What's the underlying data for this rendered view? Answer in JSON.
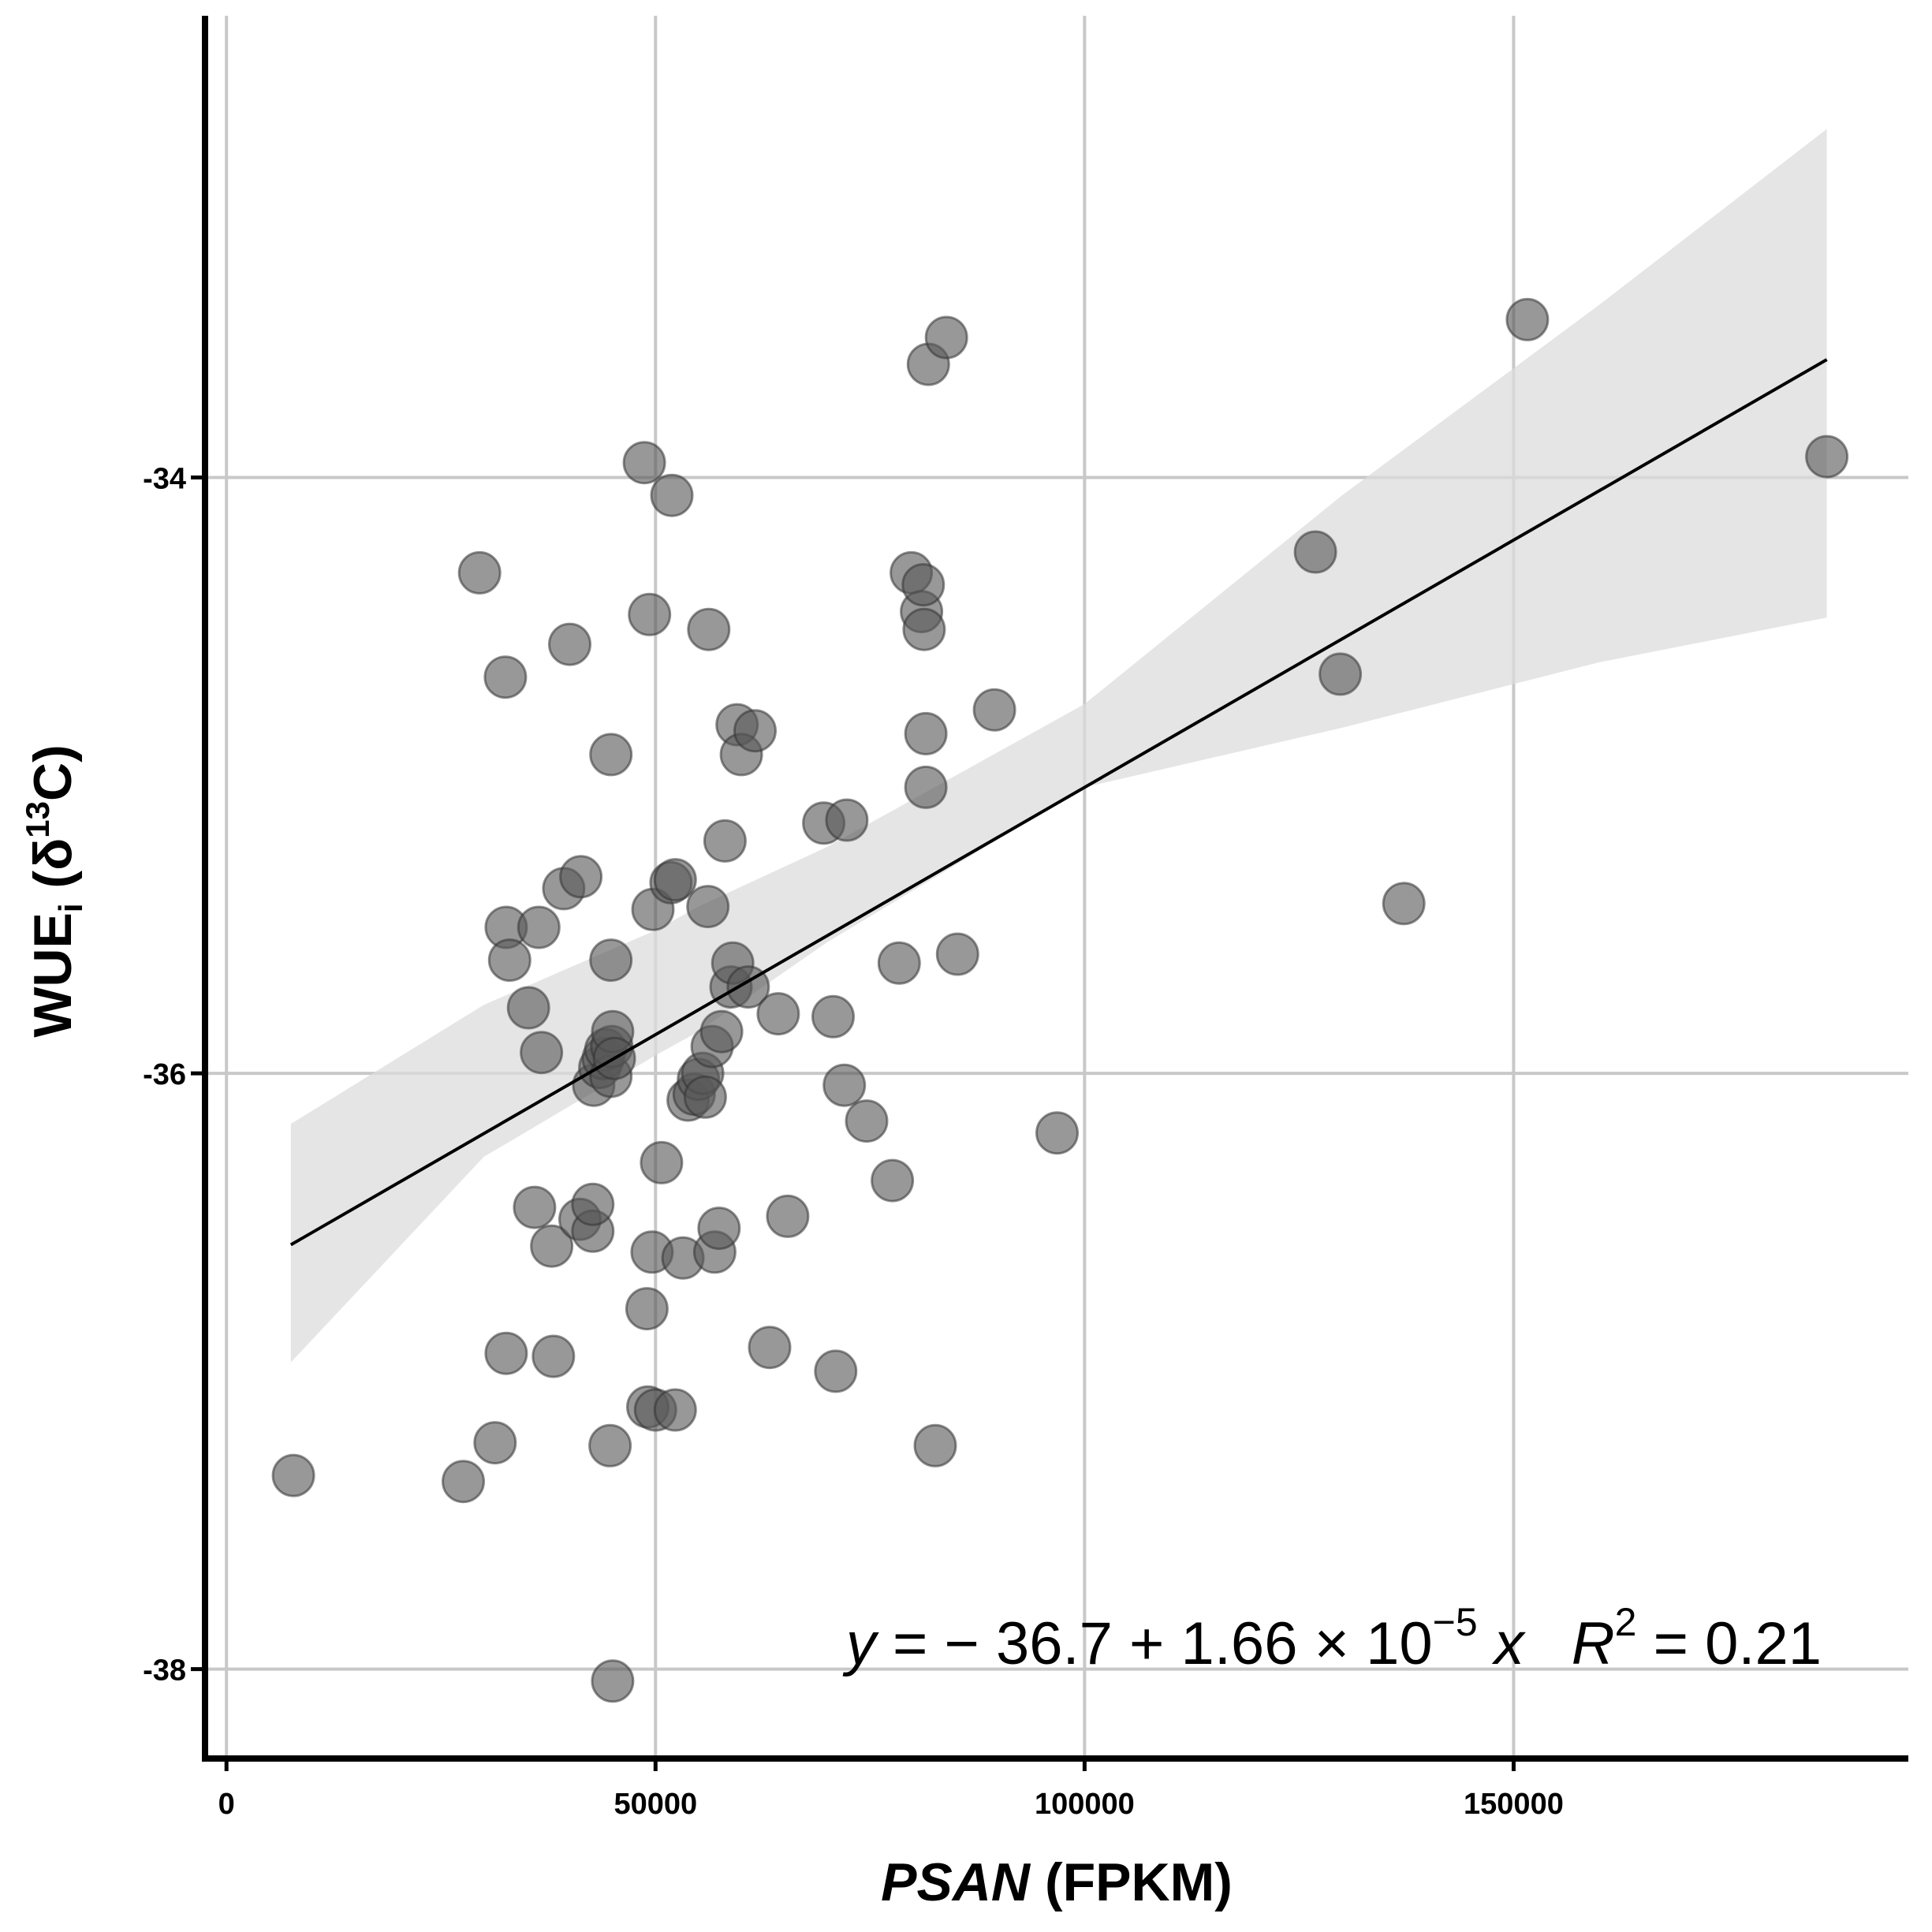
{
  "chart_data": {
    "type": "scatter",
    "xlabel_italic": "PSAN",
    "xlabel_rest": " (FPKM)",
    "ylabel_main": "WUE",
    "ylabel_sub": "i",
    "ylabel_open": " (δ",
    "ylabel_sup": "13",
    "ylabel_close": "C)",
    "xlim": [
      -2500,
      196000
    ],
    "ylim": [
      -38.3,
      -32.45
    ],
    "x_ticks": [
      0,
      50000,
      100000,
      150000
    ],
    "x_tick_labels": [
      "0",
      "50000",
      "100000",
      "150000"
    ],
    "y_ticks": [
      -34,
      -36,
      -38
    ],
    "y_tick_labels": [
      "-34",
      "-36",
      "-38"
    ],
    "grid": true,
    "equation": {
      "y": "y",
      "eq": " = − 36.7 + 1.66 × 10",
      "exp": "−5",
      "x": " x",
      "r": "R",
      "r_exp": "2",
      "r_val": " = 0.21"
    },
    "fit": {
      "intercept": -36.7,
      "slope": 1.66e-05,
      "x_range": [
        7500,
        186500
      ]
    },
    "confidence_band": {
      "x": [
        7500,
        30000,
        50000,
        55000,
        70000,
        100000,
        130000,
        160000,
        186500
      ],
      "upper": [
        -36.17,
        -35.77,
        -35.52,
        -35.44,
        -35.24,
        -34.76,
        -34.06,
        -33.42,
        -32.83
      ],
      "lower": [
        -36.97,
        -36.28,
        -35.94,
        -35.86,
        -35.56,
        -35.04,
        -34.84,
        -34.62,
        -34.47
      ]
    },
    "points": [
      [
        7800,
        -37.35
      ],
      [
        27600,
        -37.37
      ],
      [
        29500,
        -34.32
      ],
      [
        31300,
        -37.24
      ],
      [
        32500,
        -34.67
      ],
      [
        32600,
        -36.94
      ],
      [
        32600,
        -35.51
      ],
      [
        33000,
        -35.62
      ],
      [
        35200,
        -35.78
      ],
      [
        35900,
        -36.45
      ],
      [
        36400,
        -35.51
      ],
      [
        36700,
        -35.93
      ],
      [
        37900,
        -36.58
      ],
      [
        38100,
        -36.95
      ],
      [
        39300,
        -35.38
      ],
      [
        40000,
        -34.56
      ],
      [
        41200,
        -36.49
      ],
      [
        41300,
        -35.34
      ],
      [
        42700,
        -36.53
      ],
      [
        42700,
        -36.44
      ],
      [
        42800,
        -36.04
      ],
      [
        43500,
        -35.98
      ],
      [
        43900,
        -35.95
      ],
      [
        44200,
        -35.92
      ],
      [
        44800,
        -36.01
      ],
      [
        44900,
        -35.91
      ],
      [
        45000,
        -35.86
      ],
      [
        45200,
        -35.95
      ],
      [
        44800,
        -35.62
      ],
      [
        44800,
        -34.93
      ],
      [
        44700,
        -37.25
      ],
      [
        45000,
        -38.04
      ],
      [
        48700,
        -33.95
      ],
      [
        49000,
        -36.79
      ],
      [
        49100,
        -37.12
      ],
      [
        49300,
        -34.46
      ],
      [
        49600,
        -36.6
      ],
      [
        49700,
        -35.45
      ],
      [
        50000,
        -37.13
      ],
      [
        50700,
        -36.3
      ],
      [
        51800,
        -35.36
      ],
      [
        51900,
        -34.06
      ],
      [
        52300,
        -35.35
      ],
      [
        52300,
        -37.13
      ],
      [
        53200,
        -36.62
      ],
      [
        53800,
        -36.09
      ],
      [
        54500,
        -36.07
      ],
      [
        55000,
        -36.02
      ],
      [
        55500,
        -36.0
      ],
      [
        55800,
        -36.08
      ],
      [
        56100,
        -35.44
      ],
      [
        56200,
        -34.51
      ],
      [
        56600,
        -35.91
      ],
      [
        56900,
        -36.6
      ],
      [
        57400,
        -36.52
      ],
      [
        57700,
        -35.86
      ],
      [
        58100,
        -35.22
      ],
      [
        58800,
        -35.71
      ],
      [
        59000,
        -35.63
      ],
      [
        59500,
        -34.83
      ],
      [
        60000,
        -34.93
      ],
      [
        60800,
        -35.71
      ],
      [
        61600,
        -34.85
      ],
      [
        63300,
        -36.92
      ],
      [
        64300,
        -35.8
      ],
      [
        65400,
        -36.48
      ],
      [
        69600,
        -35.16
      ],
      [
        70700,
        -35.81
      ],
      [
        71000,
        -37.0
      ],
      [
        72000,
        -36.04
      ],
      [
        72300,
        -35.15
      ],
      [
        74600,
        -36.16
      ],
      [
        77600,
        -36.36
      ],
      [
        78400,
        -35.63
      ],
      [
        79800,
        -34.32
      ],
      [
        81000,
        -34.45
      ],
      [
        81200,
        -34.36
      ],
      [
        81300,
        -34.51
      ],
      [
        81500,
        -34.86
      ],
      [
        81500,
        -35.04
      ],
      [
        81800,
        -33.62
      ],
      [
        82600,
        -37.25
      ],
      [
        83900,
        -33.53
      ],
      [
        85200,
        -35.6
      ],
      [
        89500,
        -34.78
      ],
      [
        96800,
        -36.2
      ],
      [
        126900,
        -34.25
      ],
      [
        129800,
        -34.66
      ],
      [
        137200,
        -35.43
      ],
      [
        151600,
        -33.47
      ],
      [
        186500,
        -33.93
      ]
    ]
  }
}
